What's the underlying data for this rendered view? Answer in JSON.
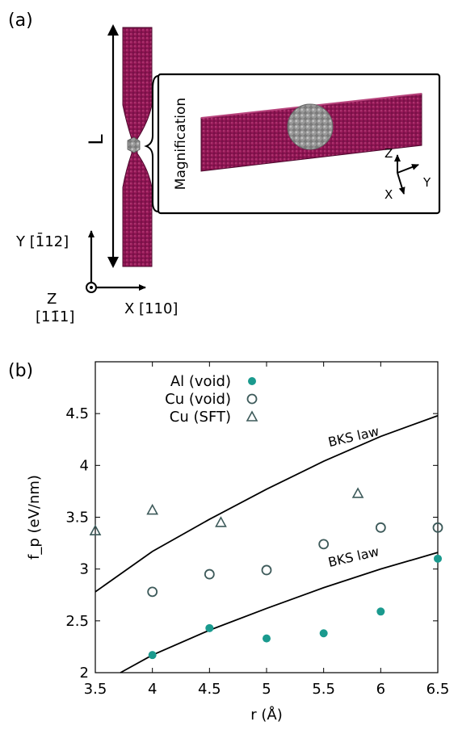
{
  "panel_a": {
    "label": "(a)",
    "length_label": "L",
    "inset_label": "Magnification",
    "inset_axes": {
      "z": "Z",
      "y": "Y",
      "x": "X"
    },
    "main_axes": {
      "y_label": "Y [1̄12]",
      "x_label": "X [110]",
      "z_label": "Z",
      "z_direction": "[11̄1]"
    },
    "colors": {
      "wire": "#7a1048",
      "wire_dark": "#4e0a2e",
      "void_cluster": "#9a9a9a"
    }
  },
  "panel_b": {
    "label": "(b)",
    "chart_data": {
      "type": "scatter",
      "xlabel": "r (Å)",
      "ylabel": "f_p (eV/nm)",
      "xlim": [
        3.5,
        6.5
      ],
      "ylim": [
        2,
        5
      ],
      "x_ticks": [
        "3.5",
        "4",
        "4.5",
        "5",
        "5.5",
        "6",
        "6.5"
      ],
      "y_ticks": [
        "2",
        "2.5",
        "3",
        "3.5",
        "4",
        "4.5"
      ],
      "legend_position": "top-left",
      "series": [
        {
          "name": "Al (void)",
          "marker": "filled-circle",
          "color": "#1a9a8e",
          "points": [
            [
              4.0,
              2.17
            ],
            [
              4.5,
              2.43
            ],
            [
              5.0,
              2.33
            ],
            [
              5.5,
              2.38
            ],
            [
              6.0,
              2.59
            ],
            [
              6.5,
              3.1
            ]
          ]
        },
        {
          "name": "Cu (void)",
          "marker": "open-circle",
          "color": "#3d5a5a",
          "points": [
            [
              4.0,
              2.78
            ],
            [
              4.5,
              2.95
            ],
            [
              5.0,
              2.99
            ],
            [
              5.5,
              3.24
            ],
            [
              6.0,
              3.4
            ],
            [
              6.5,
              3.4
            ]
          ]
        },
        {
          "name": "Cu (SFT)",
          "marker": "open-triangle",
          "color": "#3d5a5a",
          "points": [
            [
              3.5,
              3.37
            ],
            [
              4.0,
              3.57
            ],
            [
              4.6,
              3.45
            ],
            [
              5.8,
              3.73
            ]
          ]
        }
      ],
      "curves": [
        {
          "label": "BKS law",
          "points": [
            [
              3.5,
              2.78
            ],
            [
              4.0,
              3.17
            ],
            [
              4.5,
              3.48
            ],
            [
              5.0,
              3.77
            ],
            [
              5.5,
              4.04
            ],
            [
              6.0,
              4.28
            ],
            [
              6.5,
              4.48
            ]
          ]
        },
        {
          "label": "BKS law",
          "points": [
            [
              3.72,
              2.0
            ],
            [
              4.0,
              2.17
            ],
            [
              4.5,
              2.41
            ],
            [
              5.0,
              2.62
            ],
            [
              5.5,
              2.82
            ],
            [
              6.0,
              3.0
            ],
            [
              6.5,
              3.16
            ]
          ]
        }
      ]
    }
  }
}
